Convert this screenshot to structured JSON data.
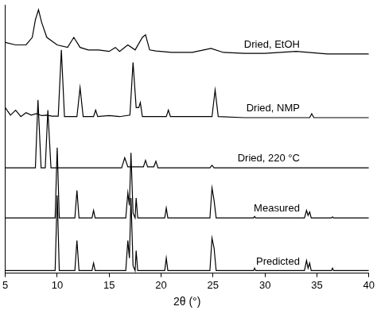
{
  "chart_data": {
    "type": "line",
    "x_label": "2θ (°)",
    "xlim": [
      5,
      40
    ],
    "xticks": [
      5,
      10,
      15,
      20,
      25,
      30,
      35,
      40
    ],
    "ylim": [
      0,
      5.35
    ],
    "grid": false,
    "tick_labels": "x",
    "series": [
      {
        "name": "Dried, EtOH",
        "color": "#000000",
        "x": [
          5,
          6,
          7,
          7.6,
          7.9,
          8.2,
          8.5,
          9,
          10,
          11,
          11.6,
          12.2,
          13,
          14,
          15,
          15.6,
          16,
          16.8,
          17.5,
          18.2,
          18.5,
          18.9,
          19.5,
          21,
          23,
          24.8,
          26,
          28,
          30,
          33,
          36,
          40
        ],
        "values": [
          4.6,
          4.55,
          4.55,
          4.7,
          5.05,
          5.25,
          5.0,
          4.7,
          4.55,
          4.5,
          4.7,
          4.5,
          4.45,
          4.45,
          4.42,
          4.5,
          4.42,
          4.55,
          4.45,
          4.7,
          4.75,
          4.45,
          4.43,
          4.4,
          4.4,
          4.48,
          4.4,
          4.38,
          4.38,
          4.42,
          4.37,
          4.37
        ]
      },
      {
        "name": "Dried, NMP",
        "color": "#000000",
        "x": [
          5,
          5.5,
          6,
          6.5,
          7,
          7.5,
          8,
          8.5,
          9,
          9.5,
          10.1,
          10.4,
          10.7,
          11.9,
          12.2,
          12.5,
          13.5,
          13.7,
          13.9,
          15,
          16,
          17.0,
          17.3,
          17.6,
          17.85,
          18.0,
          18.2,
          19,
          20.5,
          20.7,
          20.9,
          22,
          24.9,
          25.2,
          25.5,
          28,
          31,
          34.3,
          34.5,
          34.7,
          37,
          40
        ],
        "values": [
          3.3,
          3.15,
          3.25,
          3.12,
          3.2,
          3.15,
          3.18,
          3.14,
          3.15,
          3.13,
          3.13,
          4.45,
          3.12,
          3.12,
          3.7,
          3.12,
          3.12,
          3.25,
          3.12,
          3.14,
          3.12,
          3.15,
          4.2,
          3.3,
          3.3,
          3.4,
          3.12,
          3.12,
          3.12,
          3.25,
          3.12,
          3.12,
          3.12,
          3.65,
          3.12,
          3.1,
          3.1,
          3.1,
          3.18,
          3.1,
          3.1,
          3.1
        ]
      },
      {
        "name": "Dried, 220 °C",
        "color": "#000000",
        "x": [
          5,
          7.9,
          8.15,
          8.45,
          8.85,
          9.1,
          9.4,
          16.2,
          16.5,
          16.8,
          18.3,
          18.5,
          18.7,
          19.3,
          19.5,
          19.7,
          24.7,
          24.9,
          25.1,
          40
        ],
        "values": [
          2.1,
          2.1,
          3.45,
          2.1,
          2.1,
          3.25,
          2.1,
          2.1,
          2.3,
          2.12,
          2.12,
          2.25,
          2.12,
          2.12,
          2.23,
          2.1,
          2.1,
          2.15,
          2.1,
          2.1
        ]
      },
      {
        "name": "Measured",
        "color": "#000000",
        "x": [
          5,
          9.8,
          10.0,
          10.2,
          11.7,
          11.9,
          12.1,
          13.35,
          13.5,
          13.65,
          16.6,
          16.8,
          16.95,
          17.1,
          17.3,
          17.5,
          17.6,
          17.75,
          20.35,
          20.5,
          20.65,
          24.7,
          24.9,
          25.1,
          25.3,
          28.9,
          29.0,
          29.1,
          33.8,
          34.0,
          34.15,
          34.3,
          34.45,
          36.4,
          36.5,
          36.6,
          40
        ],
        "values": [
          1.1,
          1.1,
          2.5,
          1.1,
          1.1,
          1.65,
          1.1,
          1.1,
          1.25,
          1.1,
          1.1,
          1.6,
          1.35,
          2.4,
          1.2,
          1.1,
          1.5,
          1.1,
          1.1,
          1.3,
          1.1,
          1.1,
          1.7,
          1.45,
          1.1,
          1.1,
          1.13,
          1.1,
          1.1,
          1.25,
          1.15,
          1.22,
          1.1,
          1.1,
          1.12,
          1.1,
          1.1
        ]
      },
      {
        "name": "Predicted",
        "color": "#000000",
        "x": [
          5,
          9.8,
          10.0,
          10.2,
          11.7,
          11.9,
          12.1,
          13.35,
          13.5,
          13.65,
          16.6,
          16.8,
          16.95,
          17.1,
          17.3,
          17.5,
          17.6,
          17.75,
          20.35,
          20.5,
          20.65,
          24.7,
          24.9,
          25.1,
          25.3,
          28.9,
          29.0,
          29.1,
          33.8,
          34.0,
          34.15,
          34.3,
          34.45,
          36.4,
          36.5,
          36.6,
          40
        ],
        "values": [
          0.05,
          0.05,
          1.55,
          0.05,
          0.05,
          0.65,
          0.05,
          0.05,
          0.2,
          0.05,
          0.05,
          0.65,
          0.3,
          1.5,
          0.15,
          0.05,
          0.45,
          0.05,
          0.05,
          0.3,
          0.05,
          0.05,
          0.7,
          0.5,
          0.05,
          0.05,
          0.1,
          0.05,
          0.05,
          0.25,
          0.1,
          0.2,
          0.05,
          0.05,
          0.1,
          0.05,
          0.05
        ]
      }
    ]
  }
}
